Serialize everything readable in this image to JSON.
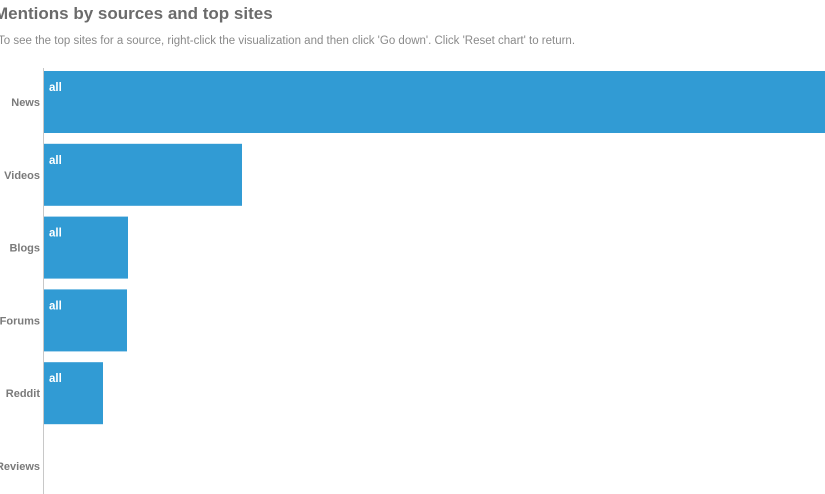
{
  "header": {
    "title": "Mentions by sources and top sites",
    "subtitle": "To see the top sites for a source, right-click the visualization and then click 'Go down'. Click 'Reset chart' to return."
  },
  "colors": {
    "bar": "#319bd4",
    "axis": "#c8c8c8",
    "title": "#6b6b6b",
    "label": "#7a7a7a"
  },
  "chart_data": {
    "type": "bar",
    "orientation": "horizontal",
    "title": "Mentions by sources and top sites",
    "categories": [
      "News",
      "Videos",
      "Blogs",
      "Forums",
      "Reddit",
      "Reviews"
    ],
    "series": [
      {
        "values": [
          782,
          198,
          84,
          83,
          59,
          0
        ],
        "labels": [
          "all",
          "all",
          "all",
          "all",
          "all",
          ""
        ]
      }
    ],
    "xlim": [
      0,
      782
    ],
    "grid": false,
    "legend": "none"
  }
}
